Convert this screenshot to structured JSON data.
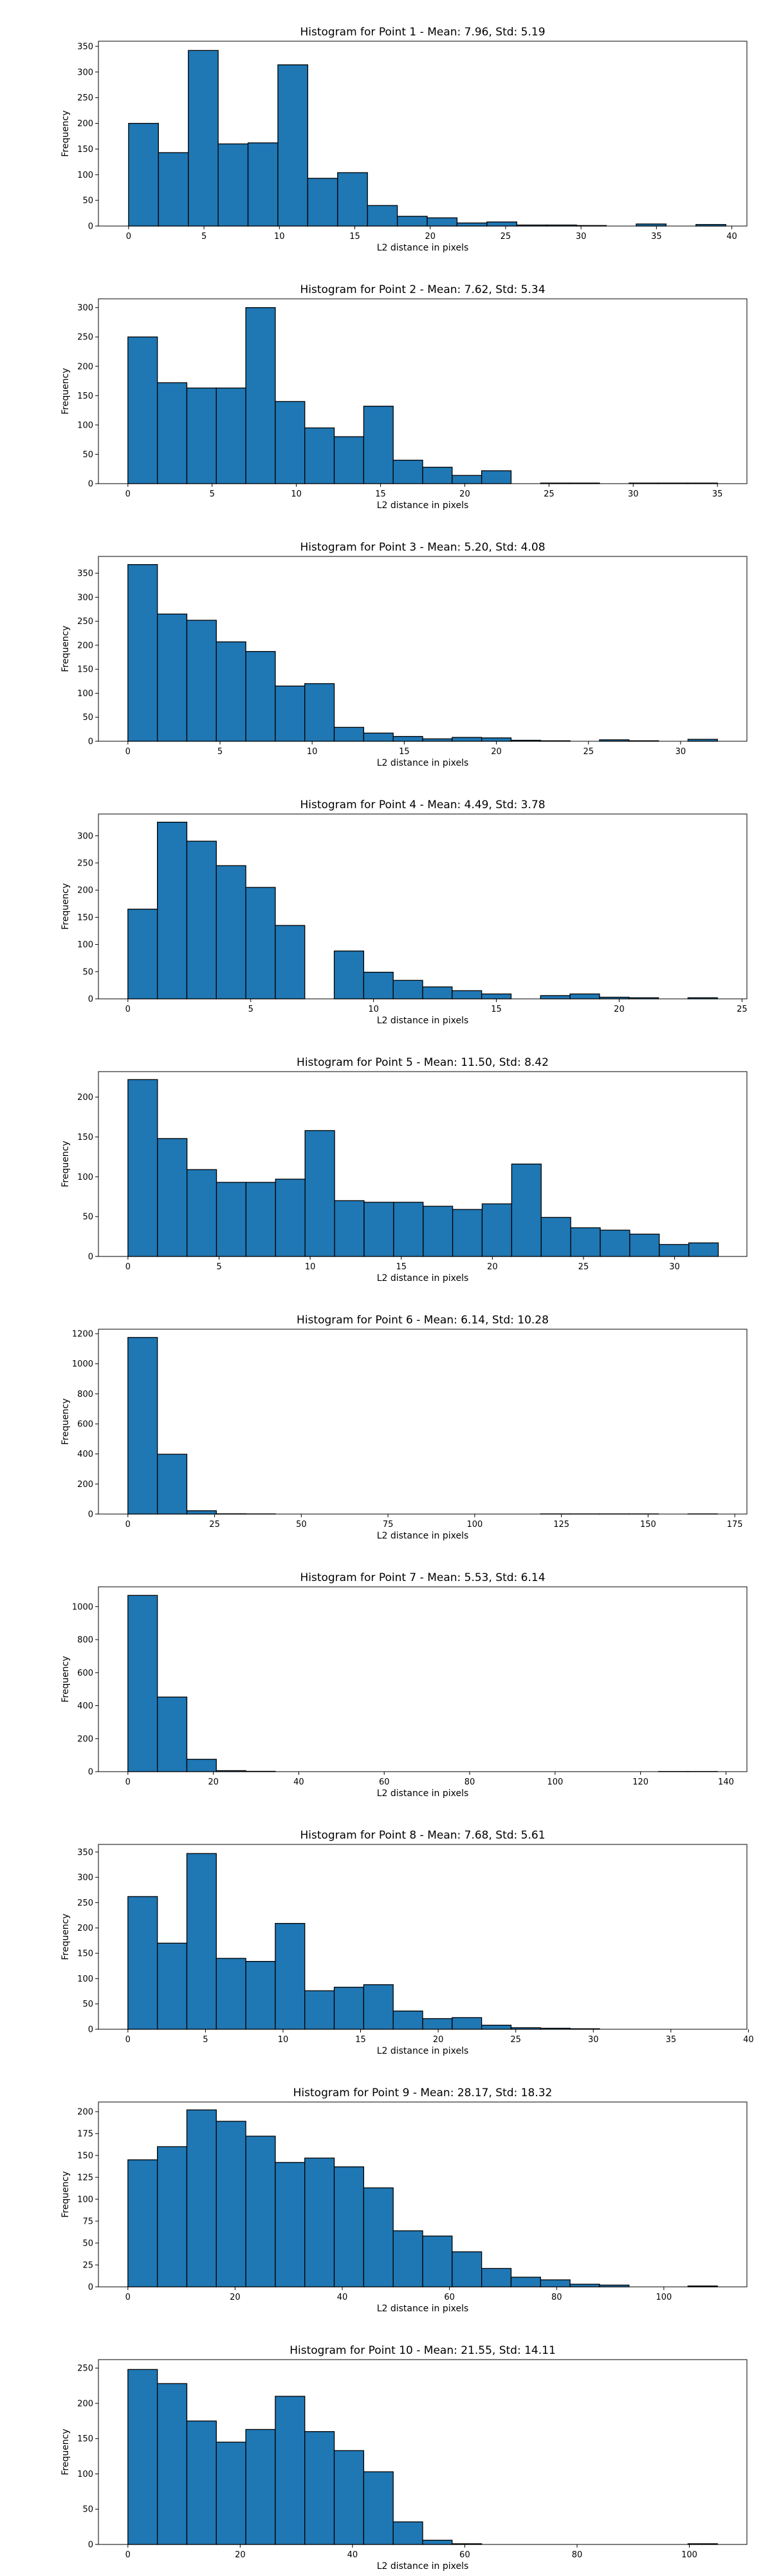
{
  "figure": {
    "bar_color": "#1f77b4",
    "edge_color": "#000000"
  },
  "chart_data": [
    {
      "type": "histogram",
      "title": "Histogram for Point 1 - Mean: 7.96, Std: 5.19",
      "xlabel": "L2 distance in pixels",
      "ylabel": "Frequency",
      "xlim": [
        -2,
        41
      ],
      "ylim": [
        0,
        360
      ],
      "xticks": [
        0,
        5,
        10,
        15,
        20,
        25,
        30,
        35,
        40
      ],
      "yticks": [
        0,
        50,
        100,
        150,
        200,
        250,
        300,
        350
      ],
      "bin_start": 0,
      "bin_width": 1.98,
      "counts": [
        200,
        143,
        342,
        160,
        162,
        314,
        93,
        104,
        40,
        19,
        16,
        6,
        8,
        2,
        2,
        1,
        0,
        4,
        0,
        3
      ]
    },
    {
      "type": "histogram",
      "title": "Histogram for Point 2 - Mean: 7.62, Std: 5.34",
      "xlabel": "L2 distance in pixels",
      "ylabel": "Frequency",
      "xlim": [
        -1.75,
        36.75
      ],
      "ylim": [
        0,
        315
      ],
      "xticks": [
        0,
        5,
        10,
        15,
        20,
        25,
        30,
        35
      ],
      "yticks": [
        0,
        50,
        100,
        150,
        200,
        250,
        300
      ],
      "bin_start": 0,
      "bin_width": 1.75,
      "counts": [
        250,
        172,
        163,
        163,
        300,
        140,
        95,
        80,
        132,
        40,
        28,
        14,
        22,
        0,
        1,
        1,
        0,
        1,
        1,
        1
      ]
    },
    {
      "type": "histogram",
      "title": "Histogram for Point 3 - Mean: 5.20, Std: 4.08",
      "xlabel": "L2 distance in pixels",
      "ylabel": "Frequency",
      "xlim": [
        -1.6,
        33.6
      ],
      "ylim": [
        0,
        385
      ],
      "xticks": [
        0,
        5,
        10,
        15,
        20,
        25,
        30
      ],
      "yticks": [
        0,
        50,
        100,
        150,
        200,
        250,
        300,
        350
      ],
      "bin_start": 0,
      "bin_width": 1.6,
      "counts": [
        368,
        265,
        252,
        207,
        187,
        115,
        120,
        29,
        17,
        10,
        5,
        8,
        7,
        2,
        1,
        0,
        3,
        1,
        0,
        4
      ]
    },
    {
      "type": "histogram",
      "title": "Histogram for Point 4 - Mean: 4.49, Std: 3.78",
      "xlabel": "L2 distance in pixels",
      "ylabel": "Frequency",
      "xlim": [
        -1.2,
        25.2
      ],
      "ylim": [
        0,
        340
      ],
      "xticks": [
        0,
        5,
        10,
        15,
        20,
        25
      ],
      "yticks": [
        0,
        50,
        100,
        150,
        200,
        250,
        300
      ],
      "bin_start": 0,
      "bin_width": 1.2,
      "counts": [
        165,
        325,
        290,
        245,
        205,
        135,
        0,
        88,
        49,
        34,
        22,
        15,
        9,
        0,
        6,
        9,
        3,
        2,
        0,
        2
      ]
    },
    {
      "type": "histogram",
      "title": "Histogram for Point 5 - Mean: 11.50, Std: 8.42",
      "xlabel": "L2 distance in pixels",
      "ylabel": "Frequency",
      "xlim": [
        -1.62,
        33.97
      ],
      "ylim": [
        0,
        232
      ],
      "xticks": [
        0,
        5,
        10,
        15,
        20,
        25,
        30
      ],
      "yticks": [
        0,
        50,
        100,
        150,
        200
      ],
      "bin_start": 0,
      "bin_width": 1.62,
      "counts": [
        222,
        148,
        109,
        93,
        93,
        97,
        158,
        70,
        68,
        68,
        63,
        59,
        66,
        116,
        49,
        36,
        33,
        28,
        15,
        17
      ]
    },
    {
      "type": "histogram",
      "title": "Histogram for Point 6 - Mean: 6.14, Std: 10.28",
      "xlabel": "L2 distance in pixels",
      "ylabel": "Frequency",
      "xlim": [
        -8.5,
        178.5
      ],
      "ylim": [
        0,
        1230
      ],
      "xticks": [
        0,
        25,
        50,
        75,
        100,
        125,
        150,
        175
      ],
      "yticks": [
        0,
        200,
        400,
        600,
        800,
        1000,
        1200
      ],
      "bin_start": 0,
      "bin_width": 8.5,
      "counts": [
        1175,
        398,
        22,
        2,
        1,
        0,
        0,
        0,
        0,
        0,
        0,
        0,
        0,
        0,
        1,
        1,
        1,
        1,
        0,
        1
      ]
    },
    {
      "type": "histogram",
      "title": "Histogram for Point 7 - Mean: 5.53, Std: 6.14",
      "xlabel": "L2 distance in pixels",
      "ylabel": "Frequency",
      "xlim": [
        -6.9,
        144.9
      ],
      "ylim": [
        0,
        1120
      ],
      "xticks": [
        0,
        20,
        40,
        60,
        80,
        100,
        120,
        140
      ],
      "yticks": [
        0,
        200,
        400,
        600,
        800,
        1000
      ],
      "bin_start": 0,
      "bin_width": 6.9,
      "counts": [
        1068,
        452,
        75,
        6,
        2,
        0,
        0,
        0,
        0,
        0,
        0,
        0,
        0,
        0,
        0,
        0,
        0,
        0,
        1,
        1
      ]
    },
    {
      "type": "histogram",
      "title": "Histogram for Point 8 - Mean: 7.68, Std: 5.61",
      "xlabel": "L2 distance in pixels",
      "ylabel": "Frequency",
      "xlim": [
        -1.9,
        39.9
      ],
      "ylim": [
        0,
        365
      ],
      "xticks": [
        0,
        5,
        10,
        15,
        20,
        25,
        30,
        35,
        40
      ],
      "yticks": [
        0,
        50,
        100,
        150,
        200,
        250,
        300,
        350
      ],
      "bin_start": 0,
      "bin_width": 1.9,
      "counts": [
        262,
        170,
        347,
        140,
        134,
        209,
        76,
        83,
        88,
        36,
        21,
        23,
        8,
        3,
        2,
        1,
        0,
        0,
        0,
        0
      ]
    },
    {
      "type": "histogram",
      "title": "Histogram for Point 9 - Mean: 28.17, Std: 18.32",
      "xlabel": "L2 distance in pixels",
      "ylabel": "Frequency",
      "xlim": [
        -5.5,
        115.5
      ],
      "ylim": [
        0,
        211
      ],
      "xticks": [
        0,
        20,
        40,
        60,
        80,
        100
      ],
      "yticks": [
        0,
        25,
        50,
        75,
        100,
        125,
        150,
        175,
        200
      ],
      "bin_start": 0,
      "bin_width": 5.5,
      "counts": [
        145,
        160,
        202,
        189,
        172,
        142,
        147,
        137,
        113,
        64,
        58,
        40,
        21,
        11,
        8,
        3,
        2,
        0,
        0,
        1
      ]
    },
    {
      "type": "histogram",
      "title": "Histogram for Point 10 - Mean: 21.55, Std: 14.11",
      "xlabel": "L2 distance in pixels",
      "ylabel": "Frequency",
      "xlim": [
        -5.25,
        110.25
      ],
      "ylim": [
        0,
        262
      ],
      "xticks": [
        0,
        20,
        40,
        60,
        80,
        100
      ],
      "yticks": [
        0,
        50,
        100,
        150,
        200,
        250
      ],
      "bin_start": 0,
      "bin_width": 5.25,
      "counts": [
        248,
        228,
        175,
        145,
        163,
        210,
        160,
        133,
        103,
        32,
        6,
        1,
        0,
        0,
        0,
        0,
        0,
        0,
        0,
        1
      ]
    }
  ]
}
